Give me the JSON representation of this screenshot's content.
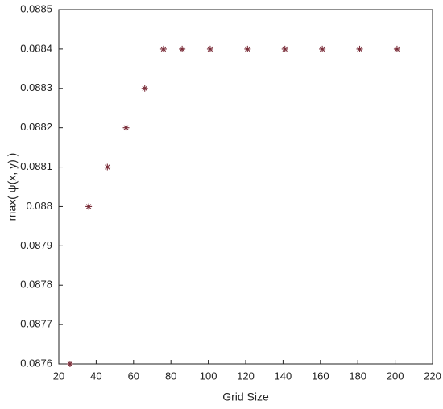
{
  "chart_data": {
    "type": "scatter",
    "x_label": "Grid Size",
    "y_label": "max( ψ(x, y) )",
    "x": [
      26,
      36,
      46,
      56,
      66,
      76,
      86,
      101,
      121,
      141,
      161,
      181,
      201
    ],
    "values": [
      0.0876,
      0.088,
      0.0881,
      0.0882,
      0.0883,
      0.0884,
      0.0884,
      0.0884,
      0.0884,
      0.0884,
      0.0884,
      0.0884,
      0.0884
    ],
    "color": "#7b2e3a",
    "marker": "asterisk",
    "xlim": [
      20,
      220
    ],
    "xticks": [
      20,
      40,
      60,
      80,
      100,
      120,
      140,
      160,
      180,
      200,
      220
    ],
    "ylim": [
      0.0876,
      0.0885
    ],
    "yticks": [
      0.0876,
      0.0877,
      0.0878,
      0.0879,
      0.088,
      0.0881,
      0.0882,
      0.0883,
      0.0884,
      0.0885
    ],
    "grid": false
  }
}
